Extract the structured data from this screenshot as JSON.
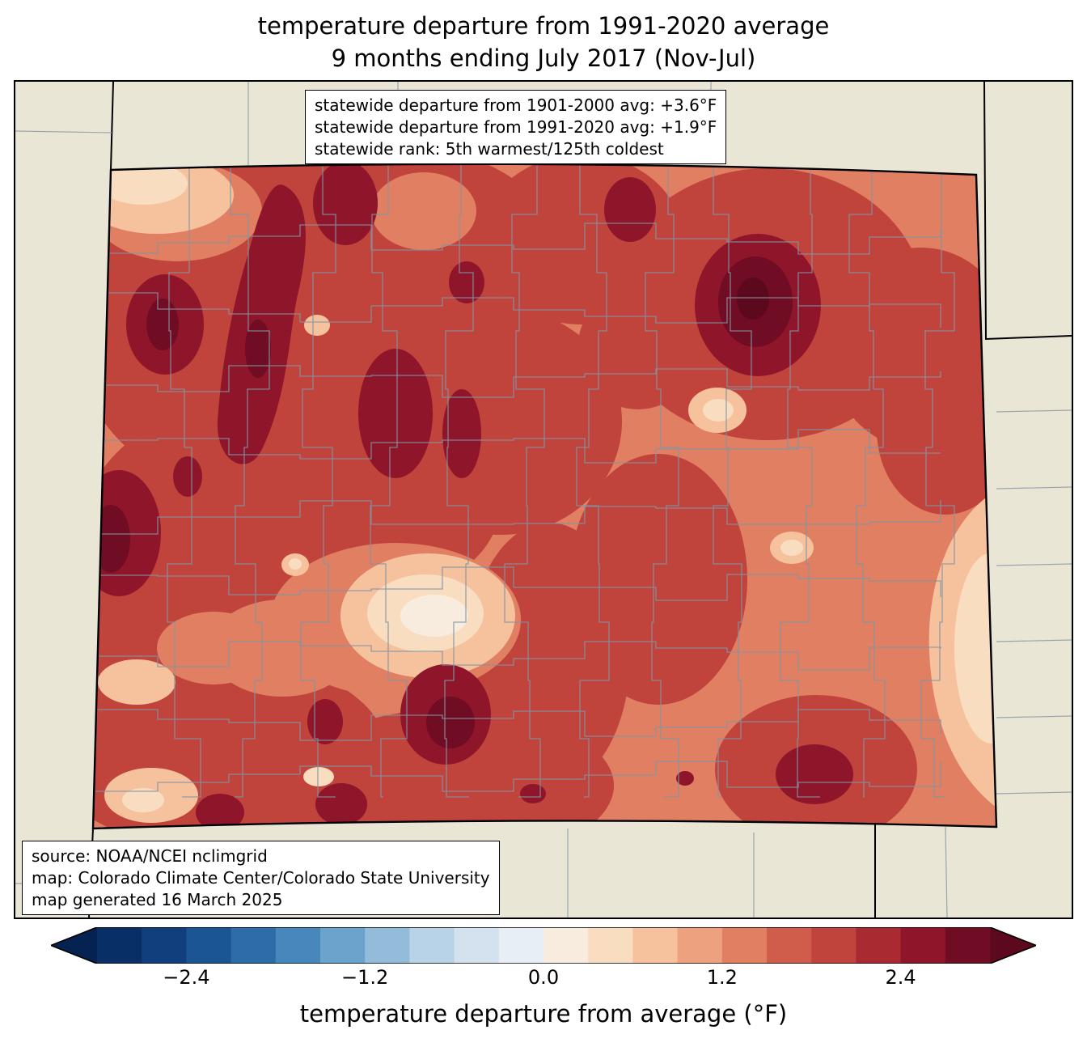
{
  "title": {
    "line1": "temperature departure from 1991-2020 average",
    "line2": "9 months ending July 2017 (Nov-Jul)"
  },
  "stats_box": {
    "lines": [
      "statewide departure from 1901-2000 avg: +3.6°F",
      "statewide departure from 1991-2020 avg: +1.9°F",
      "statewide rank: 5th warmest/125th coldest"
    ]
  },
  "source_box": {
    "lines": [
      "source: NOAA/NCEI nclimgrid",
      "map: Colorado Climate Center/Colorado State University",
      "map generated 16 March 2025"
    ]
  },
  "map": {
    "region": "Colorado",
    "period": "9 months ending July 2017 (Nov-Jul)",
    "background_color": "#e9e6d5",
    "county_line_color": "#8494a2",
    "state_border_color": "#000000",
    "dominant_colors": {
      "base_salmon": "#e07f62",
      "main_red": "#c0433c",
      "dark_red": "#8f152b",
      "darkest_red": "#700c23",
      "pale_pink": "#f6c29e",
      "cream": "#f9ddc0",
      "near_white": "#f7ecdd"
    }
  },
  "colorbar": {
    "label": "temperature departure from average (°F)",
    "unit": "°F",
    "min": -3.0,
    "max": 3.0,
    "step": 0.3,
    "tick_labels": [
      "−2.4",
      "−1.2",
      "0.0",
      "1.2",
      "2.4"
    ],
    "tick_values": [
      -2.4,
      -1.2,
      0.0,
      1.2,
      2.4
    ],
    "under_color": "#062250",
    "over_color": "#5c081d",
    "segment_colors": [
      "#082f66",
      "#113f7e",
      "#1c5593",
      "#2e6ca8",
      "#4887bc",
      "#6ba3cc",
      "#93bcda",
      "#b8d3e7",
      "#d4e2ef",
      "#e7eef5",
      "#f7ecdd",
      "#f9ddc0",
      "#f6c29e",
      "#eda17f",
      "#e07f62",
      "#d05c4b",
      "#c0433c",
      "#aa2a32",
      "#8f152b",
      "#700c23"
    ]
  }
}
